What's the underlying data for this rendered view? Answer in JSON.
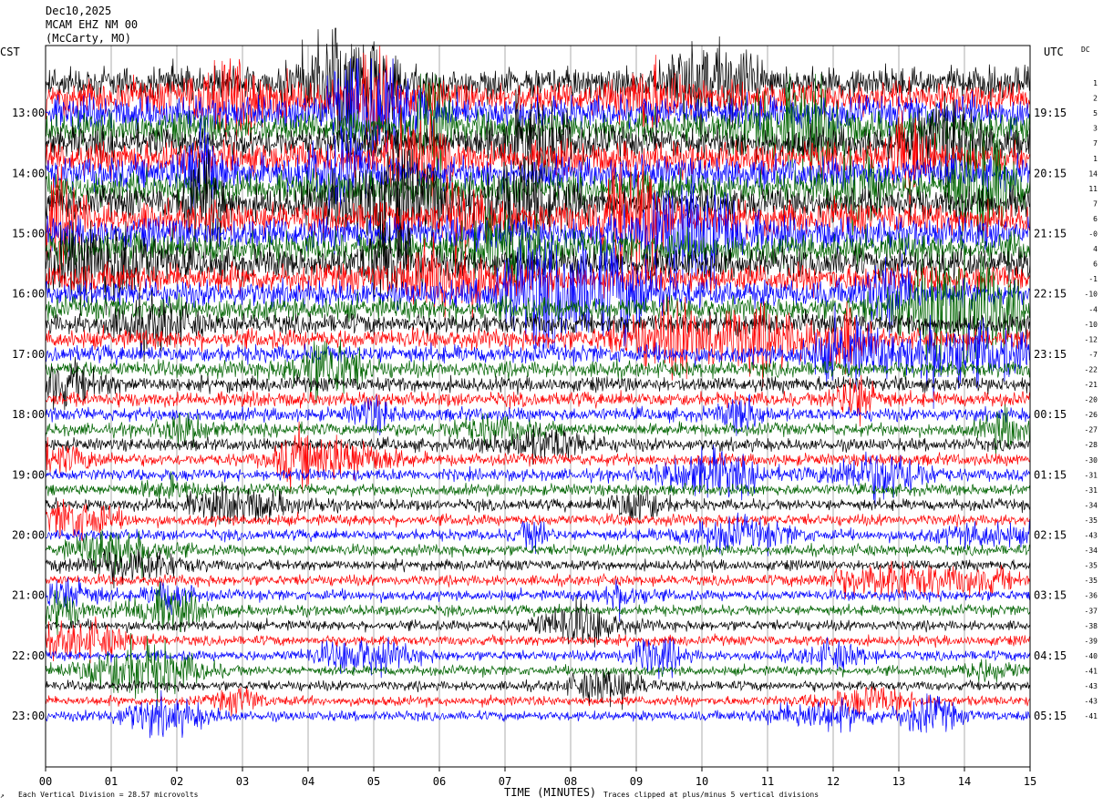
{
  "header": {
    "date": "Dec10,2025",
    "station": "MCAM EHZ NM 00",
    "location": "(McCarty, MO)",
    "left_tz": "CST",
    "right_tz": "UTC",
    "dc_label": "DC"
  },
  "footer": {
    "left_note": "Each Vertical Division =   28.57 microvolts",
    "x_axis_label": "TIME (MINUTES)",
    "right_note": "Traces clipped at plus/minus 5 vertical divisions"
  },
  "chart_data": {
    "type": "line",
    "title": "MCAM EHZ NM 00",
    "xlabel": "TIME (MINUTES)",
    "ylabel": "",
    "xlim": [
      0,
      15
    ],
    "x_ticks": [
      "00",
      "01",
      "02",
      "03",
      "04",
      "05",
      "06",
      "07",
      "08",
      "09",
      "10",
      "11",
      "12",
      "13",
      "14",
      "15"
    ],
    "trace_colors": [
      "#000000",
      "#ff0000",
      "#0000ff",
      "#006400"
    ],
    "minutes_per_line": 15,
    "lines_per_hour": 4,
    "grid": true,
    "left_hour_labels": [
      "13:00",
      "14:00",
      "15:00",
      "16:00",
      "17:00",
      "18:00",
      "19:00",
      "20:00",
      "21:00",
      "22:00",
      "23:00"
    ],
    "right_hour_labels": [
      "19:15",
      "20:15",
      "21:15",
      "22:15",
      "23:15",
      "00:15",
      "01:15",
      "02:15",
      "03:15",
      "04:15",
      "05:15"
    ],
    "dc_offsets": [
      "1",
      "2",
      "5",
      "3",
      "7",
      "1",
      "14",
      "11",
      "7",
      "6",
      "-0",
      "4",
      "6",
      "-1",
      "-10",
      "-4",
      "-10",
      "-12",
      "-7",
      "-22",
      "-21",
      "-20",
      "-26",
      "-27",
      "-28",
      "-30",
      "-31",
      "-31",
      "-34",
      "-35",
      "-43",
      "-34",
      "-35",
      "-35",
      "-36",
      "-37",
      "-38",
      "-39",
      "-40",
      "-41",
      "-43",
      "-43",
      "-41"
    ],
    "amplitude_profile": [
      1.0,
      1.0,
      1.0,
      1.0,
      1.0,
      1.0,
      1.0,
      1.0,
      1.0,
      1.0,
      1.0,
      1.0,
      0.95,
      0.9,
      0.8,
      0.7,
      0.6,
      0.55,
      0.5,
      0.45,
      0.4,
      0.38,
      0.35,
      0.33,
      0.32,
      0.3,
      0.3,
      0.28,
      0.28,
      0.27,
      0.26,
      0.26,
      0.25,
      0.25,
      0.25,
      0.24,
      0.24,
      0.23,
      0.23,
      0.22,
      0.22,
      0.22,
      0.22
    ],
    "units": "microvolts",
    "vertical_division": 28.57,
    "clip_divisions": 5
  }
}
